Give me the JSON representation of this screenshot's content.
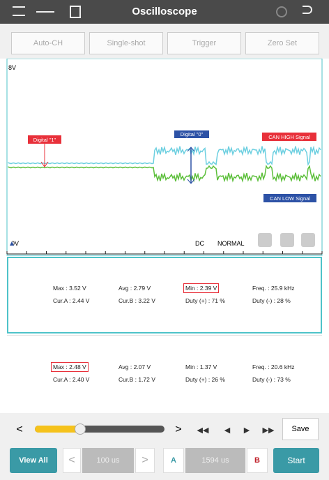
{
  "header": {
    "title": "Oscilloscope"
  },
  "buttons": [
    "Auto-CH",
    "Single-shot",
    "Trigger",
    "Zero Set"
  ],
  "scope": {
    "top_label": "8V",
    "bottom_label": "0V",
    "coupling": "DC",
    "mode": "NORMAL",
    "annotations": [
      "Digital \"1\"",
      "Digital \"0\"",
      "CAN HIGH Signal",
      "CAN LOW Signal"
    ]
  },
  "panels": [
    {
      "rows": [
        [
          "Max : 3.52 V",
          "Avg : 2.79 V",
          "Min : 2.39 V",
          "Freq. : 25.9 kHz"
        ],
        [
          "Cur.A : 2.44 V",
          "Cur.B : 3.22 V",
          "Duty (+) : 71 %",
          "Duty (-) : 28 %"
        ]
      ]
    },
    {
      "rows": [
        [
          "Max : 2.48 V",
          "Avg : 2.07 V",
          "Min : 1.37 V",
          "Freq. : 20.6 kHz"
        ],
        [
          "Cur.A : 2.40 V",
          "Cur.B : 1.72 V",
          "Duty (+) : 26 %",
          "Duty (-) : 73 %"
        ]
      ]
    }
  ],
  "controls": {
    "save": "Save",
    "view_all": "View All",
    "time_a": "100 us",
    "cursor_a": "A",
    "time_b": "1594 us",
    "cursor_b": "B",
    "start": "Start"
  }
}
